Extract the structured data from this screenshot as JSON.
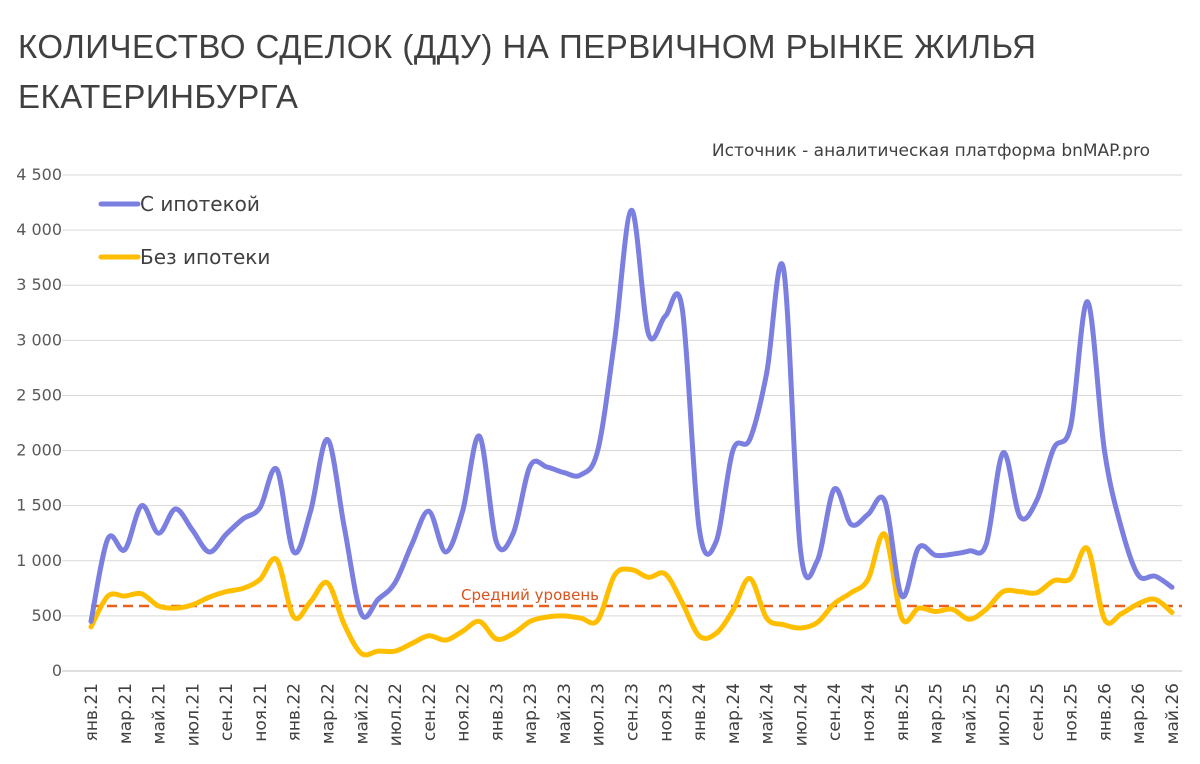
{
  "chart_data": {
    "type": "line",
    "title": "КОЛИЧЕСТВО СДЕЛОК (ДДУ) НА ПЕРВИЧНОМ РЫНКЕ ЖИЛЬЯ ЕКАТЕРИНБУРГА",
    "source": "Источник - аналитическая платформа bnMAP.pro",
    "ylim": [
      0,
      4500
    ],
    "yticks": [
      0,
      500,
      1000,
      1500,
      2000,
      2500,
      3000,
      3500,
      4000,
      4500
    ],
    "ytick_labels": [
      "0",
      "500",
      "1 000",
      "1 500",
      "2 000",
      "2 500",
      "3 000",
      "3 500",
      "4 000",
      "4 500"
    ],
    "grid": true,
    "legend_position": "top-left",
    "x": [
      "янв.21",
      "фев.21",
      "мар.21",
      "апр.21",
      "май.21",
      "июн.21",
      "июл.21",
      "авг.21",
      "сен.21",
      "окт.21",
      "ноя.21",
      "дек.21",
      "янв.22",
      "фев.22",
      "мар.22",
      "апр.22",
      "май.22",
      "июн.22",
      "июл.22",
      "авг.22",
      "сен.22",
      "окт.22",
      "ноя.22",
      "дек.22",
      "янв.23",
      "фев.23",
      "мар.23",
      "апр.23",
      "май.23",
      "июн.23",
      "июл.23",
      "авг.23",
      "сен.23",
      "окт.23",
      "ноя.23",
      "дек.23",
      "янв.24",
      "фев.24",
      "мар.24",
      "апр.24",
      "май.24",
      "июн.24",
      "июл.24",
      "авг.24",
      "сен.24",
      "окт.24",
      "ноя.24",
      "дек.24",
      "янв.25",
      "фев.25",
      "мар.25",
      "апр.25",
      "май.25",
      "июн.25",
      "июл.25",
      "авг.25",
      "сен.25",
      "окт.25",
      "ноя.25",
      "дек.25",
      "янв.26",
      "фев.26",
      "мар.26",
      "апр.26",
      "май.26"
    ],
    "x_tick_labels": [
      "янв.21",
      "мар.21",
      "май.21",
      "июл.21",
      "сен.21",
      "ноя.21",
      "янв.22",
      "мар.22",
      "май.22",
      "июл.22",
      "сен.22",
      "ноя.22",
      "янв.23",
      "мар.23",
      "май.23",
      "июл.23",
      "сен.23",
      "ноя.23",
      "янв.24",
      "мар.24",
      "май.24",
      "июл.24",
      "сен.24",
      "ноя.24",
      "янв.25",
      "мар.25",
      "май.25",
      "июл.25",
      "сен.25",
      "ноя.25",
      "янв.26",
      "мар.26",
      "май.26"
    ],
    "series": [
      {
        "name": "С ипотекой",
        "color": "#7b7fe0",
        "values": [
          450,
          1200,
          1100,
          1500,
          1250,
          1470,
          1280,
          1080,
          1240,
          1380,
          1480,
          1830,
          1080,
          1450,
          2100,
          1300,
          520,
          650,
          800,
          1150,
          1450,
          1080,
          1450,
          2130,
          1170,
          1250,
          1860,
          1850,
          1800,
          1780,
          2000,
          3000,
          4180,
          3060,
          3220,
          3290,
          1300,
          1170,
          2000,
          2100,
          2700,
          3650,
          1100,
          1000,
          1650,
          1330,
          1420,
          1540,
          680,
          1120,
          1050,
          1060,
          1090,
          1150,
          1980,
          1400,
          1550,
          2020,
          2220,
          3350,
          2000,
          1300,
          870,
          860,
          760
        ]
      },
      {
        "name": "Без ипотеки",
        "color": "#ffbe00",
        "values": [
          400,
          680,
          680,
          700,
          590,
          570,
          600,
          670,
          720,
          750,
          830,
          1010,
          490,
          630,
          800,
          420,
          160,
          180,
          180,
          250,
          320,
          280,
          360,
          450,
          290,
          340,
          450,
          490,
          500,
          480,
          460,
          870,
          920,
          850,
          880,
          620,
          320,
          340,
          550,
          840,
          480,
          420,
          390,
          440,
          610,
          710,
          830,
          1240,
          480,
          570,
          540,
          560,
          470,
          560,
          720,
          720,
          710,
          820,
          840,
          1110,
          470,
          520,
          610,
          650,
          530
        ]
      }
    ],
    "reference_line": {
      "label": "Средний уровень",
      "value": 590,
      "color": "#e8601c"
    }
  }
}
